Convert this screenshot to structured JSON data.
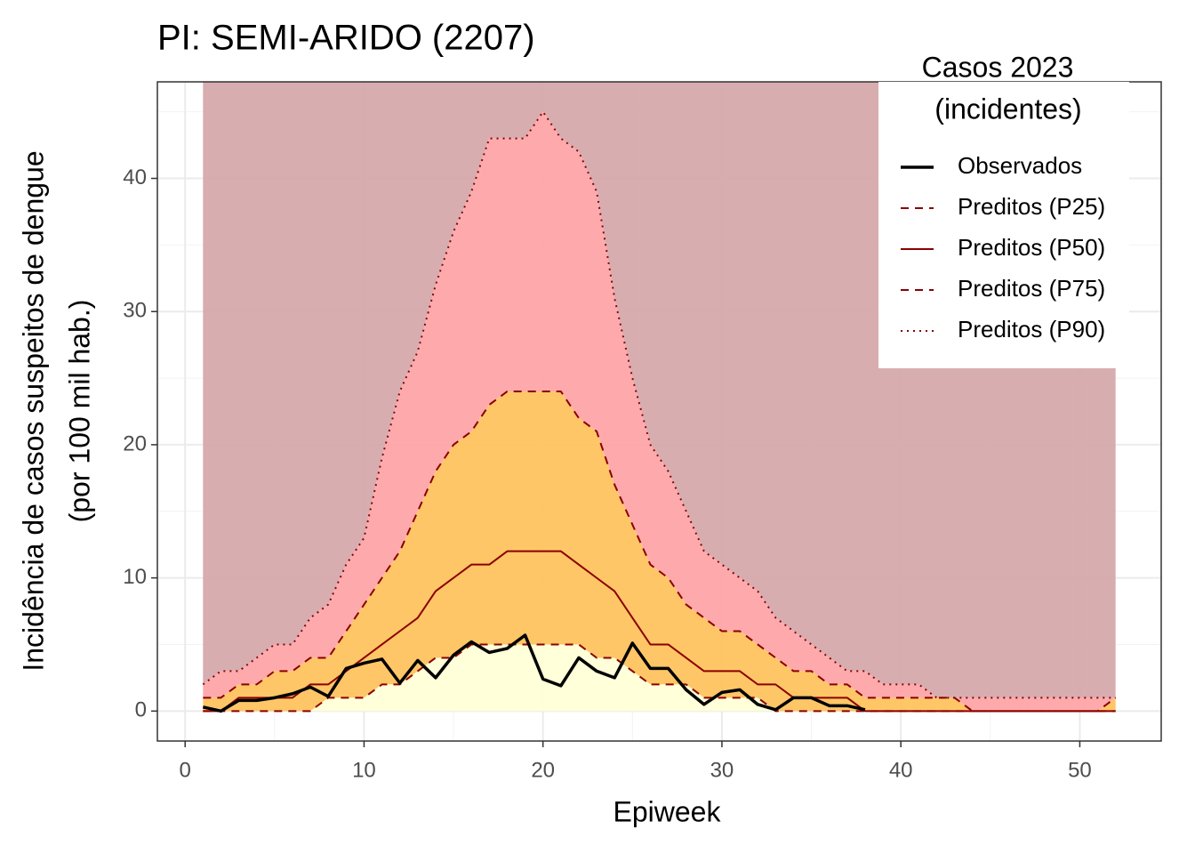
{
  "chart_data": {
    "type": "line",
    "title": "PI: SEMI-ARIDO (2207)",
    "xlabel": "Epiweek",
    "ylabel": [
      "Incidência de casos suspeitos de dengue",
      "(por 100 mil hab.)"
    ],
    "legend_title": [
      "Casos 2023",
      "(incidentes)"
    ],
    "legend": "top-right",
    "grid": true,
    "x": [
      1,
      2,
      3,
      4,
      5,
      6,
      7,
      8,
      9,
      10,
      11,
      12,
      13,
      14,
      15,
      16,
      17,
      18,
      19,
      20,
      21,
      22,
      23,
      24,
      25,
      26,
      27,
      28,
      29,
      30,
      31,
      32,
      33,
      34,
      35,
      36,
      37,
      38,
      39,
      40,
      41,
      42,
      43,
      44,
      45,
      46,
      47,
      48,
      49,
      50,
      51,
      52
    ],
    "xlim": [
      -1.55,
      54.55
    ],
    "xticks": [
      0,
      10,
      20,
      30,
      40,
      50
    ],
    "ylim": [
      -2.25,
      47.25
    ],
    "yticks": [
      0,
      10,
      20,
      30,
      40
    ],
    "band_colors": [
      "#ffffd6",
      "#fec15a",
      "#fea3a6",
      "#d5a6a8"
    ],
    "series": [
      {
        "name": "Observados",
        "color": "#000000",
        "dash": "solid",
        "width": 3.5,
        "values": [
          0.3,
          0,
          0.8,
          0.8,
          1.0,
          1.3,
          1.8,
          1.1,
          3.2,
          3.6,
          3.9,
          2.1,
          3.8,
          2.5,
          4.2,
          5.2,
          4.4,
          4.7,
          5.7,
          2.4,
          1.9,
          4.0,
          3.0,
          2.5,
          5.1,
          3.2,
          3.2,
          1.6,
          0.5,
          1.4,
          1.6,
          0.5,
          0.1,
          1.0,
          1.0,
          0.4,
          0.4,
          0.1,
          null,
          null,
          null,
          null,
          null,
          null,
          null,
          null,
          null,
          null,
          null,
          null,
          null,
          null
        ]
      },
      {
        "name": "Preditos (P25)",
        "color": "#8b0000",
        "dash": "dashed",
        "width": 2,
        "values": [
          0,
          0,
          0,
          0,
          0,
          0,
          0,
          1,
          1,
          1,
          2,
          2,
          3,
          4,
          4,
          5,
          5,
          5,
          5,
          5,
          5,
          5,
          4,
          4,
          3,
          2,
          2,
          2,
          1,
          1,
          1,
          1,
          0,
          0,
          0,
          0,
          0,
          0,
          0,
          0,
          0,
          0,
          0,
          0,
          0,
          0,
          0,
          0,
          0,
          0,
          0,
          0
        ]
      },
      {
        "name": "Preditos (P50)",
        "color": "#8b0000",
        "dash": "solid",
        "width": 2,
        "values": [
          0,
          0,
          1,
          1,
          1,
          1,
          2,
          2,
          3,
          4,
          5,
          6,
          7,
          9,
          10,
          11,
          11,
          12,
          12,
          12,
          12,
          11,
          10,
          9,
          7,
          5,
          5,
          4,
          3,
          3,
          3,
          2,
          2,
          1,
          1,
          1,
          1,
          0,
          0,
          0,
          0,
          0,
          0,
          0,
          0,
          0,
          0,
          0,
          0,
          0,
          0,
          0
        ]
      },
      {
        "name": "Preditos (P75)",
        "color": "#8b0000",
        "dash": "dashed",
        "width": 2,
        "values": [
          1,
          1,
          2,
          2,
          3,
          3,
          4,
          4,
          6,
          8,
          10,
          12,
          15,
          18,
          20,
          21,
          23,
          24,
          24,
          24,
          24,
          22,
          21,
          17,
          14,
          11,
          10,
          8,
          7,
          6,
          6,
          5,
          4,
          3,
          3,
          2,
          2,
          1,
          1,
          1,
          1,
          1,
          1,
          0,
          0,
          0,
          0,
          0,
          0,
          0,
          0,
          1
        ]
      },
      {
        "name": "Preditos (P90)",
        "color": "#8b0000",
        "dash": "dotted",
        "width": 2,
        "values": [
          2,
          3,
          3,
          4,
          5,
          5,
          7,
          8,
          11,
          13,
          19,
          24,
          27,
          32,
          36,
          39,
          43,
          43,
          43,
          45,
          43,
          42,
          39,
          31,
          25,
          20,
          18,
          15,
          12,
          11,
          10,
          9,
          7,
          6,
          5,
          4,
          3,
          3,
          2,
          2,
          2,
          1,
          1,
          1,
          1,
          1,
          1,
          1,
          1,
          1,
          1,
          1
        ]
      }
    ]
  }
}
